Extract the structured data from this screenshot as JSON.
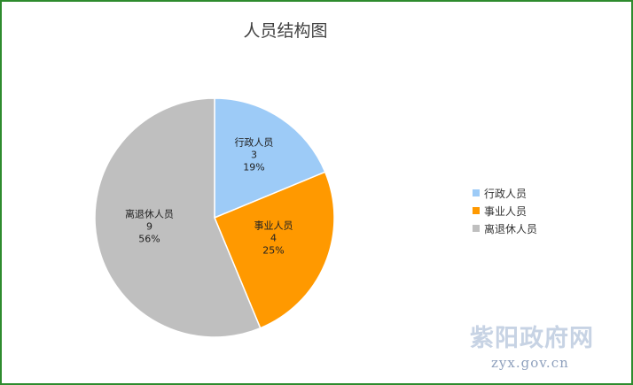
{
  "chart_data": {
    "type": "pie",
    "title": "人员结构图",
    "slices": [
      {
        "name": "行政人员",
        "value": 3,
        "percent": "19%",
        "color": "#9dcbf7"
      },
      {
        "name": "事业人员",
        "value": 4,
        "percent": "25%",
        "color": "#ff9900"
      },
      {
        "name": "离退休人员",
        "value": 9,
        "percent": "56%",
        "color": "#bfbfbf"
      }
    ],
    "legend_placement": "right"
  },
  "watermark": {
    "title": "紫阳政府网",
    "url": "zyx.gov.cn"
  }
}
